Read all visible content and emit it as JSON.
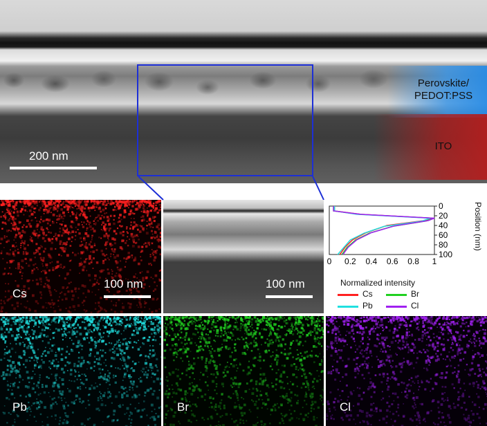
{
  "top_image": {
    "scalebar_label": "200 nm",
    "layer_label_1": "Perovskite/\nPEDOT:PSS",
    "layer_label_2": "ITO",
    "zoom_box_color": "#1d2fd6"
  },
  "panels": {
    "cs": {
      "label": "Cs",
      "scalebar_label": "100 nm",
      "color": "#ff2020"
    },
    "tem_zoom": {
      "scalebar_label": "100 nm"
    },
    "pb": {
      "label": "Pb",
      "color": "#20e0e0"
    },
    "br": {
      "label": "Br",
      "color": "#20d020"
    },
    "cl": {
      "label": "Cl",
      "color": "#a020f0"
    }
  },
  "chart_data": {
    "type": "line",
    "xlabel": "Normalized intensity",
    "ylabel": "Position (nm)",
    "xlim": [
      0,
      1
    ],
    "ylim": [
      0,
      100
    ],
    "y_inverted": true,
    "x_ticks": [
      "0",
      "0.2",
      "0.4",
      "0.6",
      "0.8",
      "1"
    ],
    "y_ticks": [
      "0",
      "20",
      "40",
      "60",
      "80",
      "100"
    ],
    "legend": [
      "Cs",
      "Br",
      "Pb",
      "Cl"
    ],
    "series": [
      {
        "name": "Cs",
        "color": "#ff2020",
        "points": [
          [
            0.05,
            0
          ],
          [
            0.05,
            10
          ],
          [
            0.3,
            17
          ],
          [
            0.98,
            25
          ],
          [
            0.9,
            30
          ],
          [
            0.55,
            40
          ],
          [
            0.35,
            55
          ],
          [
            0.22,
            70
          ],
          [
            0.15,
            85
          ],
          [
            0.1,
            100
          ]
        ]
      },
      {
        "name": "Br",
        "color": "#20d020",
        "points": [
          [
            0.04,
            0
          ],
          [
            0.04,
            10
          ],
          [
            0.28,
            17
          ],
          [
            0.99,
            25
          ],
          [
            0.92,
            31
          ],
          [
            0.6,
            42
          ],
          [
            0.38,
            56
          ],
          [
            0.25,
            70
          ],
          [
            0.17,
            85
          ],
          [
            0.12,
            100
          ]
        ]
      },
      {
        "name": "Pb",
        "color": "#20e0e0",
        "points": [
          [
            0.05,
            0
          ],
          [
            0.05,
            10
          ],
          [
            0.26,
            17
          ],
          [
            0.96,
            25
          ],
          [
            0.88,
            31
          ],
          [
            0.52,
            42
          ],
          [
            0.33,
            56
          ],
          [
            0.2,
            70
          ],
          [
            0.14,
            85
          ],
          [
            0.08,
            100
          ]
        ]
      },
      {
        "name": "Cl",
        "color": "#a020f0",
        "points": [
          [
            0.04,
            0
          ],
          [
            0.04,
            10
          ],
          [
            0.3,
            17
          ],
          [
            1.0,
            25
          ],
          [
            0.94,
            30
          ],
          [
            0.62,
            41
          ],
          [
            0.4,
            55
          ],
          [
            0.26,
            70
          ],
          [
            0.18,
            85
          ],
          [
            0.13,
            100
          ]
        ]
      }
    ]
  }
}
